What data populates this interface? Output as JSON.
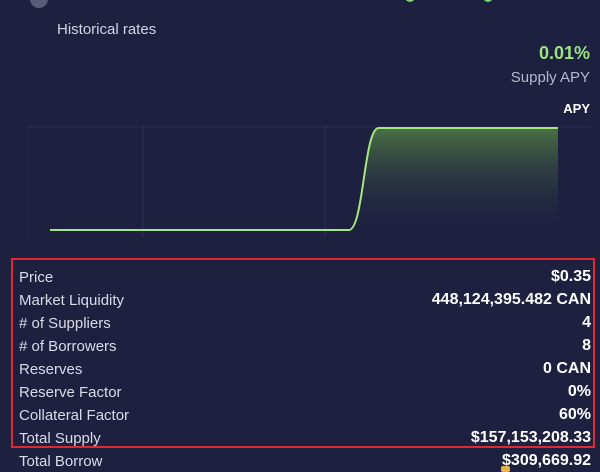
{
  "historical": {
    "title": "Historical rates",
    "supply_apy_value": "0.01%",
    "supply_apy_label": "Supply APY",
    "tab": "APY"
  },
  "chart_data": {
    "type": "area",
    "title": "",
    "xlabel": "",
    "ylabel": "",
    "x": [
      0,
      1,
      2,
      3,
      4,
      5,
      6,
      7,
      8,
      9,
      10,
      11,
      12,
      13,
      14,
      15,
      16,
      17
    ],
    "series": [
      {
        "values": [
          0,
          0,
          0,
          0,
          0,
          0,
          0,
          0,
          0,
          0,
          0,
          0.01,
          0.01,
          0.01,
          0.01,
          0.01,
          0.01,
          0.01
        ]
      }
    ],
    "grid": true,
    "legend": "none",
    "line_color": "#a6e67f"
  },
  "stats": [
    {
      "label": "Price",
      "value": "$0.35"
    },
    {
      "label": "Market Liquidity",
      "value": "448,124,395.482 CAN"
    },
    {
      "label": "# of Suppliers",
      "value": "4"
    },
    {
      "label": "# of Borrowers",
      "value": "8"
    },
    {
      "label": "Reserves",
      "value": "0 CAN"
    },
    {
      "label": "Reserve Factor",
      "value": "0%"
    },
    {
      "label": "Collateral Factor",
      "value": "60%"
    },
    {
      "label": "Total Supply",
      "value": "$157,153,208.33"
    },
    {
      "label": "Total Borrow",
      "value": "$309,669.92"
    }
  ],
  "colors": {
    "background": "#1e2040",
    "accent_green": "#9be37f",
    "highlight_border": "#e0292e"
  }
}
